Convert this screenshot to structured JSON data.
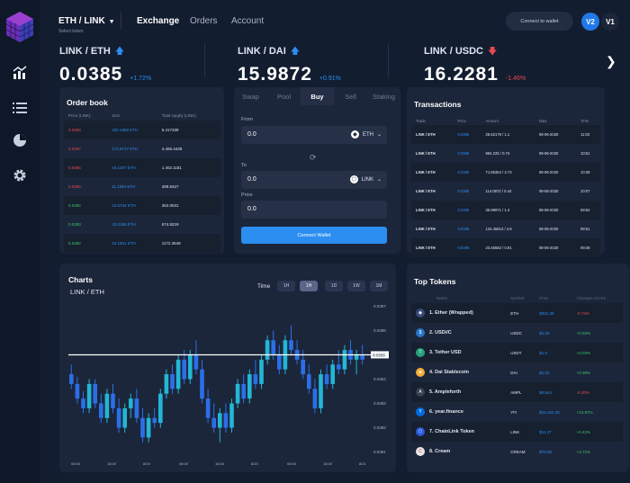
{
  "header": {
    "pair": "ETH / LINK",
    "pair_sub": "Select token",
    "nav": [
      "Exchange",
      "Orders",
      "Account"
    ],
    "connect_label": "Connect to wallet",
    "versions": [
      "V2",
      "V1"
    ]
  },
  "tickers": [
    {
      "name": "LINK / ETH",
      "price": "0.0385",
      "change": "+1.72%",
      "dir": "up"
    },
    {
      "name": "LINK / DAI",
      "price": "15.9872",
      "change": "+0.91%",
      "dir": "up"
    },
    {
      "name": "LINK / USDC",
      "price": "16.2281",
      "change": "-1.46%",
      "dir": "down"
    }
  ],
  "orderbook": {
    "title": "Order book",
    "headers": [
      "Price (LINK)",
      "Size",
      "Total supply (LINK)"
    ],
    "rows": [
      [
        "0.0388",
        "230.1859 ETH",
        "5.417339",
        "sell"
      ],
      [
        "0.0387",
        "172.8717 ETH",
        "4.465.4439",
        "sell"
      ],
      [
        "0.0386",
        "34.1207 ETH",
        "1.402.1181",
        "sell"
      ],
      [
        "0.0385",
        "11.1594 ETH",
        "289.8427",
        "sell"
      ],
      [
        "0.0384",
        "13.5734 ETH",
        "352.0531",
        "buy"
      ],
      [
        "0.0383",
        "22.0169 ETH",
        "574.9219",
        "buy"
      ],
      [
        "0.0382",
        "44.1801 ETH",
        "1172.3549",
        "buy"
      ]
    ]
  },
  "swap": {
    "tabs": [
      "Swap",
      "Pool",
      "Buy",
      "Sell",
      "Staking"
    ],
    "active_tab": 2,
    "from_label": "From",
    "from_value": "0.0",
    "from_token": "ETH",
    "to_label": "To",
    "to_value": "0.0",
    "to_token": "LINK",
    "price_label": "Price",
    "price_value": "0.0",
    "button": "Connect Wallet"
  },
  "transactions": {
    "title": "Transactions",
    "headers": [
      "Trade",
      "Price",
      "Amount",
      "Date",
      "Time"
    ],
    "rows": [
      [
        "LINK / ETH",
        "0.0385",
        "28.52179 / 1.1",
        "08-06-2020",
        "11:03"
      ],
      [
        "LINK / ETH",
        "0.0385",
        "994.225 / 0.74",
        "08-06-2020",
        "10:51"
      ],
      [
        "LINK / ETH",
        "0.0385",
        "71.65354 / 2.73",
        "08-06-2020",
        "10:39"
      ],
      [
        "LINK / ETH",
        "0.0385",
        "114.0872 / 0.44",
        "08-06-2020",
        "10:07"
      ],
      [
        "LINK / ETH",
        "0.0385",
        "35.98971 / 1.4",
        "08-06-2020",
        "09:52"
      ],
      [
        "LINK / ETH",
        "0.0385",
        "124.45613 / 4.8",
        "08-06-2020",
        "09:51"
      ],
      [
        "LINK / ETH",
        "0.0385",
        "23.45582 / 0.91",
        "08-06-2020",
        "09:48"
      ]
    ]
  },
  "chart": {
    "title": "Charts",
    "pair": "LINK / ETH",
    "time_label": "Time",
    "ranges": [
      "1H",
      "1H",
      "1D",
      "1W",
      "1M"
    ],
    "active_range": 1,
    "current_price_tag": "0.0385",
    "up_color": "#23b6d6",
    "down_color": "#2b6fe8"
  },
  "chart_data": {
    "type": "candlestick",
    "y_ticks": [
      "0.0387",
      "0.0386",
      "0.0385",
      "0.0384",
      "0.0383",
      "0.0382",
      "0.0381"
    ],
    "x_ticks": [
      "08:00",
      "16:00",
      "8/19",
      "08:00",
      "16:00",
      "8/20",
      "08:00",
      "16:00",
      "8/21"
    ],
    "ylim": [
      0.03808,
      0.03872
    ],
    "current_price": 0.0385,
    "ohlc": [
      [
        0.03842,
        0.03846,
        0.03836,
        0.03838
      ],
      [
        0.03838,
        0.03841,
        0.0383,
        0.03832
      ],
      [
        0.03832,
        0.03835,
        0.03826,
        0.03828
      ],
      [
        0.03828,
        0.0384,
        0.03826,
        0.03838
      ],
      [
        0.03838,
        0.0384,
        0.03828,
        0.0383
      ],
      [
        0.0383,
        0.03834,
        0.03822,
        0.03824
      ],
      [
        0.03824,
        0.03836,
        0.03822,
        0.03834
      ],
      [
        0.03834,
        0.03838,
        0.03826,
        0.03828
      ],
      [
        0.03828,
        0.03832,
        0.03818,
        0.0382
      ],
      [
        0.0382,
        0.0383,
        0.03818,
        0.03828
      ],
      [
        0.03828,
        0.03834,
        0.03824,
        0.03832
      ],
      [
        0.03832,
        0.03836,
        0.03822,
        0.03824
      ],
      [
        0.03824,
        0.03828,
        0.03814,
        0.03816
      ],
      [
        0.03816,
        0.03826,
        0.03814,
        0.03824
      ],
      [
        0.03824,
        0.03828,
        0.0382,
        0.03822
      ],
      [
        0.03822,
        0.03836,
        0.0382,
        0.03834
      ],
      [
        0.03834,
        0.03844,
        0.03832,
        0.03842
      ],
      [
        0.03842,
        0.03846,
        0.03834,
        0.03836
      ],
      [
        0.03836,
        0.0385,
        0.03834,
        0.03848
      ],
      [
        0.03848,
        0.03852,
        0.03838,
        0.0384
      ],
      [
        0.0384,
        0.03852,
        0.03838,
        0.0385
      ],
      [
        0.0385,
        0.03856,
        0.03842,
        0.03844
      ],
      [
        0.03844,
        0.03848,
        0.0383,
        0.03832
      ],
      [
        0.03832,
        0.03836,
        0.03822,
        0.03824
      ],
      [
        0.03824,
        0.0383,
        0.03818,
        0.0382
      ],
      [
        0.0382,
        0.03828,
        0.03814,
        0.03826
      ],
      [
        0.03826,
        0.0383,
        0.03818,
        0.0382
      ],
      [
        0.0382,
        0.03832,
        0.03818,
        0.0383
      ],
      [
        0.0383,
        0.0384,
        0.03828,
        0.03838
      ],
      [
        0.03838,
        0.03842,
        0.0383,
        0.03832
      ],
      [
        0.03832,
        0.03844,
        0.0383,
        0.03842
      ],
      [
        0.03842,
        0.03848,
        0.03836,
        0.03838
      ],
      [
        0.03838,
        0.0385,
        0.03836,
        0.03848
      ],
      [
        0.03848,
        0.03858,
        0.03846,
        0.03856
      ],
      [
        0.03856,
        0.0386,
        0.03848,
        0.0385
      ],
      [
        0.0385,
        0.03854,
        0.03842,
        0.03844
      ],
      [
        0.03844,
        0.03858,
        0.03842,
        0.03856
      ],
      [
        0.03856,
        0.03862,
        0.0385,
        0.03852
      ],
      [
        0.03852,
        0.03856,
        0.03846,
        0.03848
      ],
      [
        0.03848,
        0.03852,
        0.0384,
        0.03842
      ],
      [
        0.03842,
        0.03846,
        0.03834,
        0.03836
      ],
      [
        0.03836,
        0.0384,
        0.03826,
        0.03828
      ],
      [
        0.03828,
        0.03844,
        0.03826,
        0.03842
      ],
      [
        0.03842,
        0.03846,
        0.03836,
        0.03838
      ],
      [
        0.03838,
        0.03848,
        0.03836,
        0.03846
      ],
      [
        0.03846,
        0.03852,
        0.03842,
        0.03844
      ],
      [
        0.03844,
        0.03854,
        0.03842,
        0.03852
      ],
      [
        0.03852,
        0.03856,
        0.03846,
        0.03848
      ],
      [
        0.03848,
        0.03852,
        0.03842,
        0.0385
      ],
      [
        0.0385,
        0.03854,
        0.03846,
        0.03848
      ]
    ]
  },
  "top_tokens": {
    "title": "Top Tokens",
    "headers": [
      "Name",
      "Symbol",
      "Price",
      "Changes 24 Hrs"
    ],
    "rows": [
      {
        "name": "1. Ether (Wrapped)",
        "symbol": "ETH",
        "price": "$391.38",
        "change": "-0.73%",
        "icon_color": "#3b4b7a",
        "glyph": "◆"
      },
      {
        "name": "2. USD//C",
        "symbol": "USDC",
        "price": "$1.00",
        "change": "+0.03%",
        "icon_color": "#2775ca",
        "glyph": "$"
      },
      {
        "name": "3. Tether USD",
        "symbol": "USDT",
        "price": "$1.0",
        "change": "+0.03%",
        "icon_color": "#26a17b",
        "glyph": "T"
      },
      {
        "name": "4. Dai Stablecoin",
        "symbol": "DAI",
        "price": "$1.02",
        "change": "+0.38%",
        "icon_color": "#f5ac37",
        "glyph": "◈"
      },
      {
        "name": "5. Ampleforth",
        "symbol": "AMPL",
        "price": "$0.644",
        "change": "-0.30%",
        "icon_color": "#3a3f52",
        "glyph": "A"
      },
      {
        "name": "6. year.finance",
        "symbol": "YFI",
        "price": "$15,152.25",
        "change": "+13.97%",
        "icon_color": "#006ae3",
        "glyph": "Y"
      },
      {
        "name": "7. ChainLink Token",
        "symbol": "LINK",
        "price": "$11.27",
        "change": "+0.42%",
        "icon_color": "#2a5ada",
        "glyph": "⬡"
      },
      {
        "name": "8. Cream",
        "symbol": "CREAM",
        "price": "$78.06",
        "change": "+4.72%",
        "icon_color": "#e8e8e8",
        "glyph": "C"
      }
    ]
  }
}
